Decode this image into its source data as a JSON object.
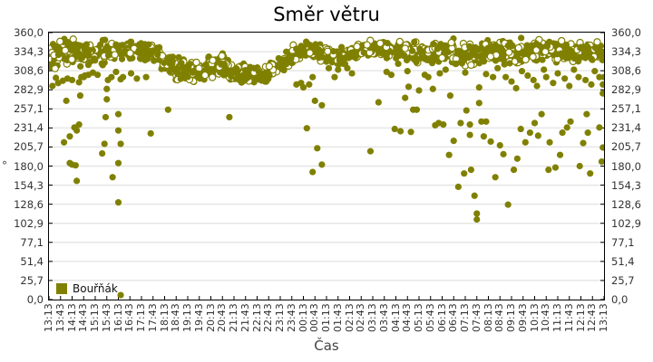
{
  "chart_data": {
    "type": "scatter",
    "title": "Směr větru",
    "xlabel": "Čas",
    "ylabel": "°",
    "ylim": [
      0,
      360
    ],
    "y_ticks": [
      "0,0",
      "25,7",
      "51,4",
      "77,1",
      "102,9",
      "128,6",
      "154,3",
      "180,0",
      "205,7",
      "231,4",
      "257,1",
      "282,9",
      "308,6",
      "334,3",
      "360,0"
    ],
    "x_ticks": [
      "13:13",
      "13:43",
      "14:13",
      "14:43",
      "15:13",
      "15:43",
      "16:13",
      "16:43",
      "17:13",
      "17:43",
      "18:13",
      "18:43",
      "19:13",
      "19:43",
      "20:13",
      "20:43",
      "21:13",
      "21:43",
      "22:13",
      "22:43",
      "23:13",
      "23:43",
      "00:13",
      "00:43",
      "01:13",
      "01:43",
      "02:13",
      "02:43",
      "03:13",
      "03:43",
      "04:13",
      "04:43",
      "05:13",
      "05:43",
      "06:13",
      "06:43",
      "07:13",
      "07:43",
      "08:13",
      "08:43",
      "09:13",
      "09:43",
      "10:13",
      "10:43",
      "11:13",
      "11:43",
      "12:13",
      "12:43",
      "13:13"
    ],
    "grid": true,
    "legend_position": "bottom-left inside",
    "series": [
      {
        "name": "Bouřňák",
        "color": "#808000",
        "marker": "circle",
        "main_band_by_tick": [
          328,
          330,
          333,
          333,
          330,
          335,
          338,
          335,
          332,
          334,
          318,
          313,
          308,
          306,
          312,
          318,
          305,
          303,
          304,
          305,
          316,
          328,
          335,
          336,
          330,
          327,
          330,
          336,
          338,
          338,
          337,
          335,
          330,
          332,
          334,
          335,
          330,
          333,
          336,
          336,
          334,
          332,
          335,
          336,
          333,
          335,
          333,
          332,
          334
        ],
        "band_spread_by_tick": [
          12,
          14,
          14,
          12,
          14,
          12,
          10,
          10,
          10,
          10,
          12,
          12,
          10,
          10,
          10,
          12,
          10,
          10,
          10,
          10,
          10,
          10,
          8,
          8,
          10,
          8,
          8,
          8,
          8,
          8,
          8,
          10,
          12,
          10,
          10,
          12,
          12,
          12,
          10,
          12,
          12,
          12,
          10,
          10,
          10,
          10,
          10,
          10,
          10
        ],
        "outliers": [
          [
            0.6,
            299
          ],
          [
            1.5,
            268
          ],
          [
            1.3,
            212
          ],
          [
            1.8,
            220
          ],
          [
            1.8,
            184
          ],
          [
            2.0,
            182
          ],
          [
            2.3,
            181
          ],
          [
            2.4,
            160
          ],
          [
            2.6,
            236
          ],
          [
            2.4,
            228
          ],
          [
            2.2,
            232
          ],
          [
            2.7,
            275
          ],
          [
            2.6,
            293
          ],
          [
            3.0,
            300
          ],
          [
            2.0,
            296
          ],
          [
            3.1,
            302
          ],
          [
            4.6,
            197
          ],
          [
            4.8,
            210
          ],
          [
            4.9,
            246
          ],
          [
            5.0,
            270
          ],
          [
            5.0,
            284
          ],
          [
            5.1,
            296
          ],
          [
            5.5,
            165
          ],
          [
            6.0,
            131
          ],
          [
            6.0,
            184
          ],
          [
            6.2,
            210
          ],
          [
            6.0,
            228
          ],
          [
            6.0,
            250
          ],
          [
            6.2,
            297
          ],
          [
            6.2,
            6
          ],
          [
            8.8,
            224
          ],
          [
            10.3,
            256
          ],
          [
            15.6,
            246
          ],
          [
            22.3,
            231
          ],
          [
            22.8,
            172
          ],
          [
            23.2,
            204
          ],
          [
            23.6,
            182
          ],
          [
            23.6,
            262
          ],
          [
            23.0,
            268
          ],
          [
            22.0,
            286
          ],
          [
            22.5,
            290
          ],
          [
            22.8,
            300
          ],
          [
            27.8,
            200
          ],
          [
            28.5,
            266
          ],
          [
            29.9,
            230
          ],
          [
            30.4,
            227
          ],
          [
            30.8,
            272
          ],
          [
            31.1,
            287
          ],
          [
            31.5,
            256
          ],
          [
            31.3,
            226
          ],
          [
            31.8,
            256
          ],
          [
            32.0,
            282
          ],
          [
            32.5,
            303
          ],
          [
            33.2,
            284
          ],
          [
            33.4,
            235
          ],
          [
            33.7,
            238
          ],
          [
            34.1,
            236
          ],
          [
            34.6,
            195
          ],
          [
            34.7,
            275
          ],
          [
            35.0,
            214
          ],
          [
            35.4,
            152
          ],
          [
            35.6,
            238
          ],
          [
            35.9,
            170
          ],
          [
            36.1,
            255
          ],
          [
            36.4,
            222
          ],
          [
            36.4,
            236
          ],
          [
            36.5,
            175
          ],
          [
            36.8,
            140
          ],
          [
            37.0,
            116
          ],
          [
            37.0,
            108
          ],
          [
            37.2,
            265
          ],
          [
            37.4,
            240
          ],
          [
            37.6,
            220
          ],
          [
            37.2,
            286
          ],
          [
            37.8,
            240
          ],
          [
            38.2,
            213
          ],
          [
            38.6,
            165
          ],
          [
            39.0,
            208
          ],
          [
            39.7,
            128
          ],
          [
            39.3,
            196
          ],
          [
            40.2,
            175
          ],
          [
            40.5,
            190
          ],
          [
            40.8,
            230
          ],
          [
            41.2,
            212
          ],
          [
            41.6,
            225
          ],
          [
            42.0,
            238
          ],
          [
            42.3,
            221
          ],
          [
            42.6,
            250
          ],
          [
            43.2,
            175
          ],
          [
            43.3,
            212
          ],
          [
            43.8,
            178
          ],
          [
            44.2,
            195
          ],
          [
            44.4,
            225
          ],
          [
            44.8,
            232
          ],
          [
            45.1,
            240
          ],
          [
            45.9,
            180
          ],
          [
            46.2,
            211
          ],
          [
            46.6,
            225
          ],
          [
            46.8,
            170
          ],
          [
            46.5,
            250
          ],
          [
            47.6,
            232
          ],
          [
            47.8,
            186
          ],
          [
            47.9,
            205
          ],
          [
            47.9,
            278
          ],
          [
            47.9,
            290
          ],
          [
            48.0,
            300
          ]
        ],
        "low_band_points": [
          [
            0.3,
            288
          ],
          [
            0.8,
            292
          ],
          [
            1.2,
            295
          ],
          [
            1.6,
            298
          ],
          [
            2.8,
            300
          ],
          [
            3.4,
            303
          ],
          [
            3.8,
            306
          ],
          [
            4.2,
            303
          ],
          [
            5.4,
            300
          ],
          [
            5.8,
            307
          ],
          [
            6.4,
            300
          ],
          [
            7.1,
            305
          ],
          [
            7.6,
            298
          ],
          [
            8.4,
            300
          ],
          [
            21.4,
            290
          ],
          [
            21.8,
            292
          ],
          [
            24.2,
            312
          ],
          [
            24.7,
            300
          ],
          [
            25.0,
            310
          ],
          [
            25.8,
            312
          ],
          [
            26.2,
            305
          ],
          [
            29.2,
            307
          ],
          [
            29.6,
            303
          ],
          [
            30.2,
            318
          ],
          [
            31.0,
            308
          ],
          [
            32.8,
            300
          ],
          [
            33.8,
            305
          ],
          [
            34.3,
            310
          ],
          [
            35.2,
            318
          ],
          [
            36.0,
            306
          ],
          [
            37.8,
            304
          ],
          [
            38.4,
            300
          ],
          [
            38.8,
            312
          ],
          [
            39.5,
            300
          ],
          [
            40.0,
            294
          ],
          [
            40.4,
            285
          ],
          [
            40.9,
            308
          ],
          [
            41.4,
            302
          ],
          [
            41.9,
            296
          ],
          [
            42.2,
            288
          ],
          [
            42.8,
            310
          ],
          [
            43.0,
            300
          ],
          [
            43.6,
            292
          ],
          [
            44.0,
            305
          ],
          [
            44.6,
            298
          ],
          [
            45.0,
            288
          ],
          [
            45.4,
            310
          ],
          [
            45.8,
            300
          ],
          [
            46.4,
            296
          ],
          [
            46.9,
            290
          ],
          [
            47.2,
            308
          ],
          [
            47.6,
            300
          ]
        ]
      }
    ]
  },
  "legend": {
    "label": "Bouřňák",
    "color": "#808000"
  }
}
